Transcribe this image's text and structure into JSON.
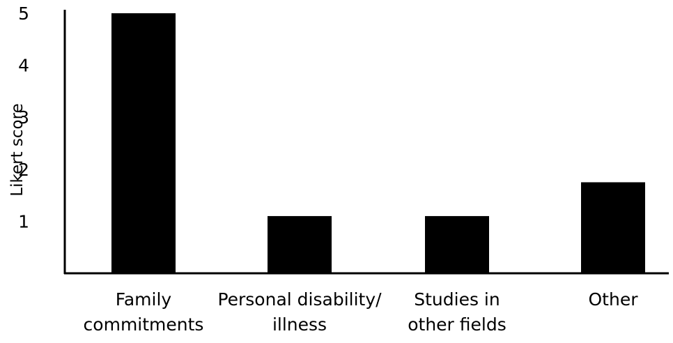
{
  "chart_data": {
    "type": "bar",
    "title": "",
    "xlabel": "",
    "ylabel": "Likert score",
    "categories": [
      [
        "Family",
        "commitments"
      ],
      [
        "Personal disability/",
        "illness"
      ],
      [
        "Studies in",
        "other fields"
      ],
      [
        "Other"
      ]
    ],
    "values": [
      5,
      1.1,
      1.1,
      1.75
    ],
    "ylim": [
      0,
      5
    ],
    "yticks": [
      "1",
      "2",
      "3",
      "4",
      "5"
    ],
    "grid": false,
    "legend": "none",
    "bar_color": "#000000",
    "axis_color": "#000000"
  }
}
